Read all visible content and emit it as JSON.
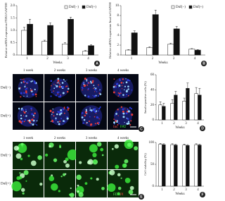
{
  "chart_data": [
    {
      "type": "bar",
      "panel": "A",
      "ylabel": "Relative mRNA expression PDX1/GAPDH",
      "xlabel": "Weeks",
      "categories": [
        "1",
        "2",
        "3",
        "4"
      ],
      "series": [
        {
          "name": "Dnf(−)",
          "color": "#ffffff",
          "values": [
            1.0,
            0.55,
            0.45,
            0.15
          ],
          "errors": [
            0.12,
            0.05,
            0.05,
            0.03
          ]
        },
        {
          "name": "Dnf(+)",
          "color": "#111111",
          "values": [
            1.25,
            1.2,
            1.45,
            0.38
          ],
          "errors": [
            0.2,
            0.1,
            0.08,
            0.04
          ]
        }
      ],
      "ylim": [
        0,
        2
      ],
      "yticks": [
        0,
        0.5,
        {
          "value": 1,
          "label": "1.0"
        },
        1.5,
        {
          "value": 2,
          "label": "2.0"
        }
      ],
      "legend": "top-right"
    },
    {
      "type": "bar",
      "panel": "B",
      "ylabel": "Relative mRNA expression Insulin/GAPDH",
      "xlabel": "Weeks",
      "categories": [
        "1",
        "2",
        "3",
        "4"
      ],
      "series": [
        {
          "name": "Dnf(−)",
          "color": "#ffffff",
          "values": [
            1.0,
            1.5,
            2.2,
            1.2
          ],
          "errors": [
            0.1,
            0.15,
            0.2,
            0.1
          ]
        },
        {
          "name": "Dnf(+)",
          "color": "#111111",
          "values": [
            4.5,
            8.2,
            5.3,
            1.0
          ],
          "errors": [
            0.4,
            0.9,
            0.5,
            0.1
          ]
        }
      ],
      "ylim": [
        0,
        10
      ],
      "yticks": [
        0,
        2,
        4,
        6,
        8,
        10
      ],
      "legend": "top-right"
    },
    {
      "type": "bar",
      "panel": "D",
      "ylabel": "Insulin-positive cells (%)",
      "xlabel": "Weeks",
      "categories": [
        "1",
        "2",
        "3",
        "4"
      ],
      "series": [
        {
          "color": "#ffffff",
          "values": [
            20,
            22,
            25,
            35
          ],
          "errors": [
            4,
            5,
            4,
            8
          ]
        },
        {
          "color": "#111111",
          "values": [
            18,
            33,
            42,
            33
          ],
          "errors": [
            4,
            5,
            7,
            9
          ]
        }
      ],
      "ylim": [
        0,
        60
      ],
      "yticks": [
        0,
        20,
        40,
        60
      ]
    },
    {
      "type": "bar",
      "panel": "F",
      "ylabel": "Cell viability (%)",
      "xlabel": "Weeks",
      "categories": [
        "1",
        "2",
        "3",
        "4"
      ],
      "series": [
        {
          "color": "#ffffff",
          "values": [
            96,
            95,
            94,
            95
          ],
          "errors": [
            2,
            2,
            2,
            2
          ]
        },
        {
          "color": "#111111",
          "values": [
            95,
            94,
            93,
            94
          ],
          "errors": [
            2,
            2,
            2,
            2
          ]
        }
      ],
      "ylim": [
        0,
        100
      ],
      "yticks": [
        0,
        50,
        100
      ]
    }
  ],
  "image_panels": [
    {
      "panel": "C",
      "columns": [
        "1 week",
        "2 weeks",
        "3 weeks",
        "4 weeks"
      ],
      "rows": [
        "Dnf(−)",
        "Dnf(+)"
      ],
      "stain": [
        "Ins",
        "FAT"
      ]
    },
    {
      "panel": "E",
      "columns": [
        "1 week",
        "2 weeks",
        "3 weeks",
        "4 weeks"
      ],
      "rows": [
        "Dnf(−)",
        "Dnf(+)"
      ],
      "stain": [
        "FDA",
        "PI"
      ]
    }
  ]
}
